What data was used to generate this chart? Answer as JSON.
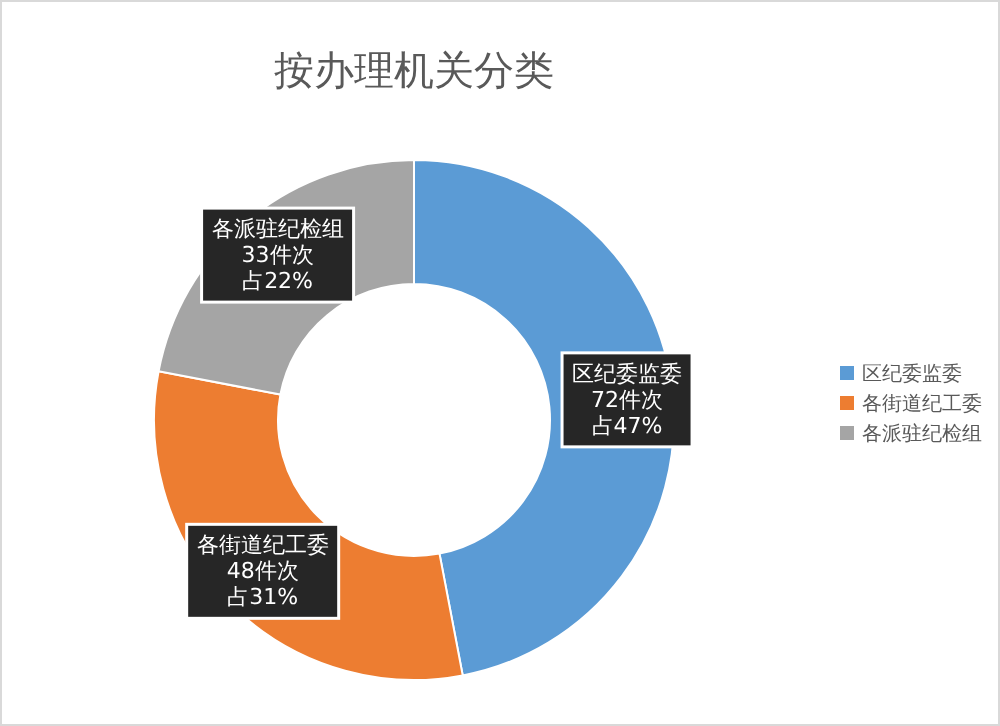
{
  "chart_data": {
    "type": "donut",
    "title": "按办理机关分类",
    "categories": [
      "区纪委监委",
      "各街道纪工委",
      "各派驻纪检组"
    ],
    "values": [
      47,
      31,
      22
    ],
    "colors": [
      "#5b9bd5",
      "#ed7d31",
      "#a5a5a5"
    ],
    "value_labels": [
      [
        "72件次",
        "占47%"
      ],
      [
        "48件次",
        "占31%"
      ],
      [
        "33件次",
        "占22%"
      ]
    ],
    "legend": "right"
  }
}
